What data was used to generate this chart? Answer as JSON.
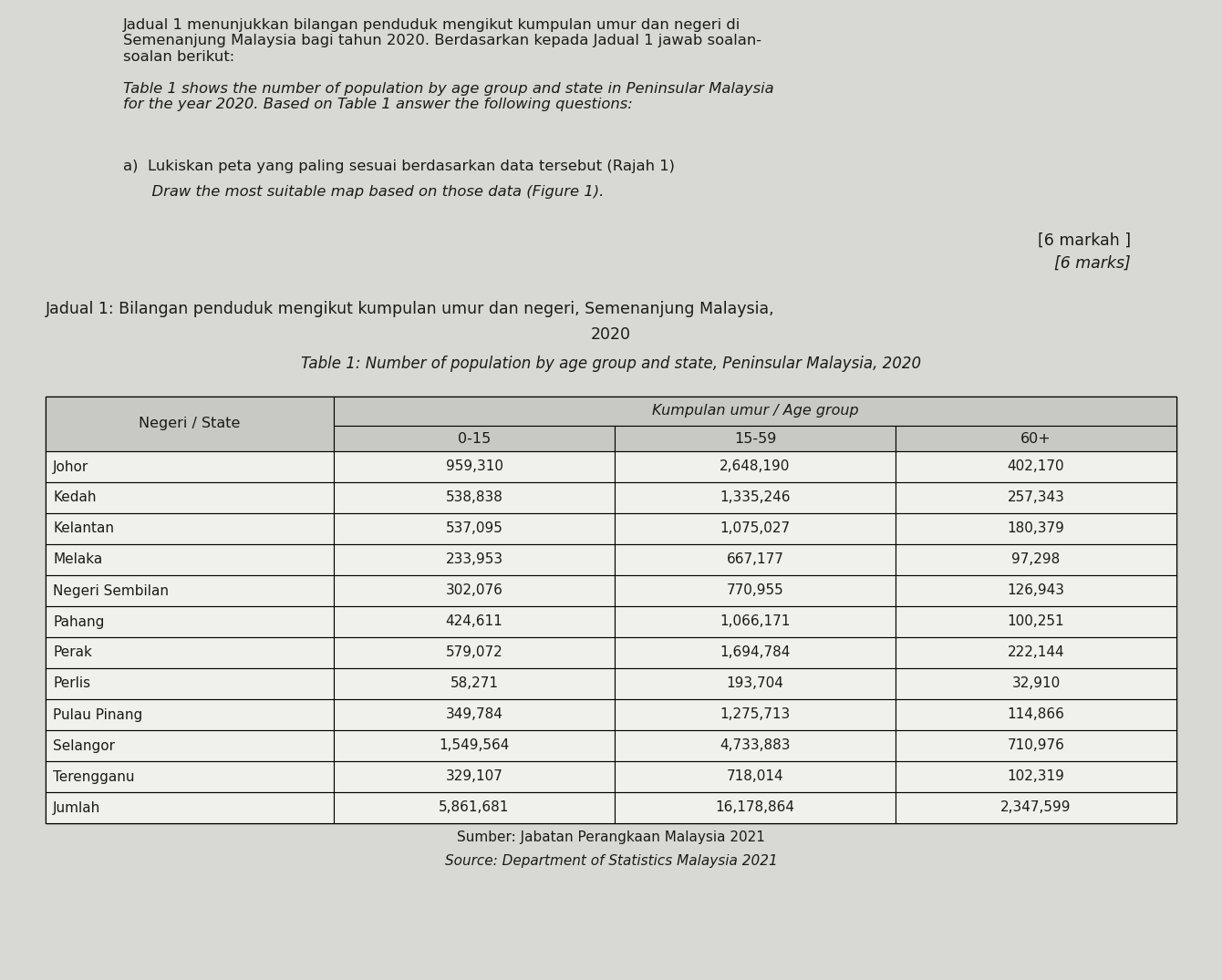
{
  "para_malay": "Jadual 1 menunjukkan bilangan penduduk mengikut kumpulan umur dan negeri di\nSemenanjung Malaysia bagi tahun 2020. Berdasarkan kepada Jadual 1 jawab soalan-\nsoalan berikut:",
  "para_english": "Table 1 shows the number of population by age group and state in Peninsular Malaysia\nfor the year 2020. Based on Table 1 answer the following questions:",
  "item_a_malay": "a)  Lukiskan peta yang paling sesuai berdasarkan data tersebut (Rajah 1)",
  "item_a_english": "      Draw the most suitable map based on those data (Figure 1).",
  "marks_malay": "[6 markah ]",
  "marks_english": "[6 marks]",
  "table_title_malay_line1": "Jadual 1: Bilangan penduduk mengikut kumpulan umur dan negeri, Semenanjung Malaysia,",
  "table_title_malay_line2": "2020",
  "table_title_english": "Table 1: Number of population by age group and state, Peninsular Malaysia, 2020",
  "col_header_main": "Kumpulan umur / Age group",
  "col_header_state": "Negeri / State",
  "col_headers": [
    "0-15",
    "15-59",
    "60+"
  ],
  "states": [
    "Johor",
    "Kedah",
    "Kelantan",
    "Melaka",
    "Negeri Sembilan",
    "Pahang",
    "Perak",
    "Perlis",
    "Pulau Pinang",
    "Selangor",
    "Terengganu",
    "Jumlah"
  ],
  "data_0_15": [
    "959,310",
    "538,838",
    "537,095",
    "233,953",
    "302,076",
    "424,611",
    "579,072",
    "58,271",
    "349,784",
    "1,549,564",
    "329,107",
    "5,861,681"
  ],
  "data_15_59": [
    "2,648,190",
    "1,335,246",
    "1,075,027",
    "667,177",
    "770,955",
    "1,066,171",
    "1,694,784",
    "193,704",
    "1,275,713",
    "4,733,883",
    "718,014",
    "16,178,864"
  ],
  "data_60plus": [
    "402,170",
    "257,343",
    "180,379",
    "97,298",
    "126,943",
    "100,251",
    "222,144",
    "32,910",
    "114,866",
    "710,976",
    "102,319",
    "2,347,599"
  ],
  "source_malay": "Sumber: Jabatan Perangkaan Malaysia 2021",
  "source_english": "Source: Department of Statistics Malaysia 2021",
  "bg_color": "#d8d8d4",
  "table_bg": "#f0f0ec",
  "header_bg": "#c8c8c4",
  "text_color": "#1a1a1a"
}
